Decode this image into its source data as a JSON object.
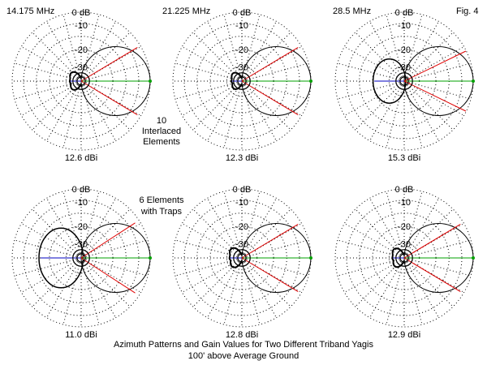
{
  "figure_label": "Fig. 4",
  "caption": {
    "line1": "Azimuth Patterns and Gain Values for Two Different Triband Yagis",
    "line2": "100' above Average Ground"
  },
  "notes": {
    "top": [
      "10",
      "Interlaced",
      "Elements"
    ],
    "bottom": [
      "6 Elements",
      "with Traps"
    ]
  },
  "colors": {
    "pattern": "#000000",
    "grid": "#000000",
    "main_lobe_axis": "#00a000",
    "half_power_lines": "#e00000",
    "rear_axis": "#0000c0"
  },
  "chart_data": [
    {
      "type": "polar",
      "name": "azimuth-pattern-10el-14mhz",
      "group": "10 Interlaced Elements",
      "title": "14.175 MHz",
      "frequency_mhz": 14.175,
      "max_gain_label": "12.6 dBi",
      "max_gain_dbi": 12.6,
      "ring_labels": [
        "0 dB",
        "-10",
        "-20",
        "-30"
      ],
      "beamwidth_deg": 62,
      "front_to_back_db": 22,
      "rear_lobe": "lobed"
    },
    {
      "type": "polar",
      "name": "azimuth-pattern-10el-21mhz",
      "group": "10 Interlaced Elements",
      "title": "21.225 MHz",
      "frequency_mhz": 21.225,
      "max_gain_label": "12.3 dBi",
      "max_gain_dbi": 12.3,
      "ring_labels": [
        "0 dB",
        "-10",
        "-20",
        "-30"
      ],
      "beamwidth_deg": 62,
      "front_to_back_db": 24,
      "rear_lobe": "lobed"
    },
    {
      "type": "polar",
      "name": "azimuth-pattern-10el-28mhz",
      "group": "10 Interlaced Elements",
      "title": "28.5 MHz",
      "frequency_mhz": 28.5,
      "max_gain_label": "15.3 dBi",
      "max_gain_dbi": 15.3,
      "ring_labels": [
        "0 dB",
        "-10",
        "-20",
        "-30"
      ],
      "beamwidth_deg": 52,
      "front_to_back_db": 15,
      "rear_lobe": "round"
    },
    {
      "type": "polar",
      "name": "azimuth-pattern-6el-14mhz",
      "group": "6 Elements with Traps",
      "title": "",
      "frequency_mhz": 14.175,
      "max_gain_label": "11.0 dBi",
      "max_gain_dbi": 11.0,
      "ring_labels": [
        "0 dB",
        "-10",
        "-20",
        "-30"
      ],
      "beamwidth_deg": 66,
      "front_to_back_db": 6,
      "rear_lobe": "round"
    },
    {
      "type": "polar",
      "name": "azimuth-pattern-6el-21mhz",
      "group": "6 Elements with Traps",
      "title": "",
      "frequency_mhz": 21.225,
      "max_gain_label": "12.8 dBi",
      "max_gain_dbi": 12.8,
      "ring_labels": [
        "0 dB",
        "-10",
        "-20",
        "-30"
      ],
      "beamwidth_deg": 62,
      "front_to_back_db": 20,
      "rear_lobe": "lobed"
    },
    {
      "type": "polar",
      "name": "azimuth-pattern-6el-28mhz",
      "group": "6 Elements with Traps",
      "title": "",
      "frequency_mhz": 28.5,
      "max_gain_label": "12.9 dBi",
      "max_gain_dbi": 12.9,
      "ring_labels": [
        "0 dB",
        "-10",
        "-20",
        "-30"
      ],
      "beamwidth_deg": 62,
      "front_to_back_db": 21,
      "rear_lobe": "lobed"
    }
  ]
}
